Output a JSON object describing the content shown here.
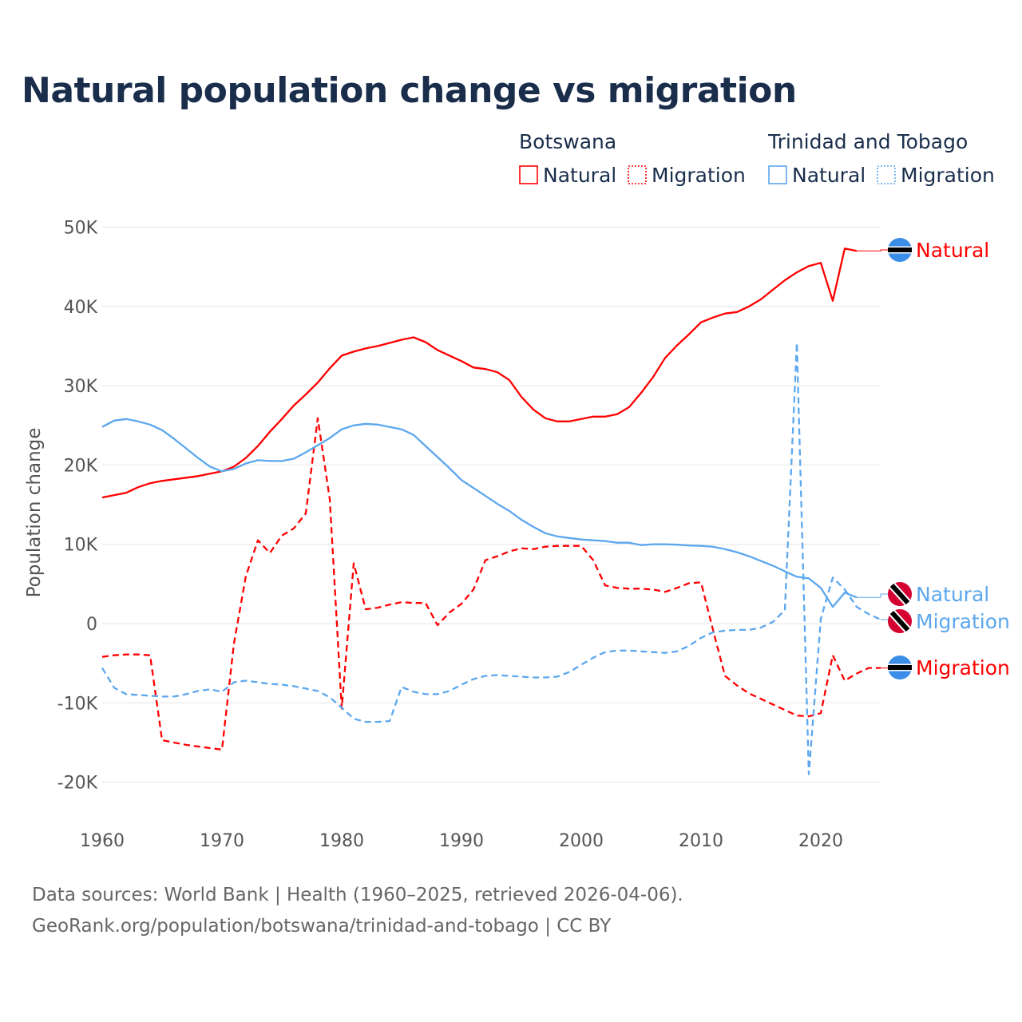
{
  "chart_data": {
    "type": "line",
    "title": "Natural population change vs migration",
    "xlabel": "",
    "ylabel": "Population change",
    "xlim": [
      1960,
      2025
    ],
    "ylim": [
      -20000,
      50000
    ],
    "x_ticks": [
      "1960",
      "1970",
      "1980",
      "1990",
      "2000",
      "2010",
      "2020"
    ],
    "y_ticks": [
      {
        "v": 50000,
        "label": "50K"
      },
      {
        "v": 40000,
        "label": "40K"
      },
      {
        "v": 30000,
        "label": "30K"
      },
      {
        "v": 20000,
        "label": "20K"
      },
      {
        "v": 10000,
        "label": "10K"
      },
      {
        "v": 0,
        "label": "0"
      },
      {
        "v": -10000,
        "label": "-10K"
      },
      {
        "v": -20000,
        "label": "-20K"
      }
    ],
    "grid": true,
    "legend": {
      "placement": "top-right",
      "groups": [
        {
          "country": "Botswana",
          "items": [
            "Natural",
            "Migration"
          ]
        },
        {
          "country": "Trinidad and Tobago",
          "items": [
            "Natural",
            "Migration"
          ]
        }
      ]
    },
    "colors": {
      "Botswana": "#ff0000",
      "Trinidad and Tobago": "#5ca7ee"
    },
    "series": [
      {
        "name": "Botswana Natural",
        "country": "Botswana",
        "kind": "Natural",
        "end_label": "Natural",
        "start": 1960,
        "values": [
          15900,
          16200,
          16500,
          17200,
          17700,
          18000,
          18200,
          18400,
          18600,
          18900,
          19200,
          19800,
          20900,
          22400,
          24200,
          25800,
          27500,
          28900,
          30400,
          32200,
          33800,
          34300,
          34700,
          35000,
          35400,
          35800,
          36100,
          35500,
          34500,
          33800,
          33100,
          32300,
          32100,
          31700,
          30700,
          28600,
          27000,
          25900,
          25500,
          25500,
          25800,
          26100,
          26100,
          26400,
          27300,
          29100,
          31100,
          33500,
          35100,
          36500,
          38000,
          38600,
          39100,
          39300,
          40000,
          40900,
          42100,
          43300,
          44300,
          45100,
          45500,
          40700,
          47300,
          47000
        ]
      },
      {
        "name": "Botswana Migration",
        "country": "Botswana",
        "kind": "Migration",
        "end_label": "Migration",
        "start": 1960,
        "values": [
          -4200,
          -4000,
          -3900,
          -3900,
          -4000,
          -14700,
          -15000,
          -15300,
          -15500,
          -15700,
          -15900,
          -2500,
          6000,
          10500,
          8900,
          11100,
          12000,
          13900,
          25900,
          15700,
          -10700,
          7600,
          1800,
          2000,
          2400,
          2700,
          2600,
          2600,
          -200,
          1400,
          2500,
          4300,
          8000,
          8500,
          9100,
          9500,
          9400,
          9700,
          9800,
          9800,
          9800,
          8000,
          4800,
          4500,
          4400,
          4400,
          4300,
          4000,
          4500,
          5100,
          5200,
          -800,
          -6600,
          -7800,
          -8800,
          -9500,
          -10200,
          -10900,
          -11600,
          -11700,
          -11300,
          -4000,
          -7200,
          -6300,
          -5600,
          -5600
        ]
      },
      {
        "name": "Trinidad and Tobago Natural",
        "country": "Trinidad and Tobago",
        "kind": "Natural",
        "end_label": "Natural",
        "start": 1960,
        "values": [
          24800,
          25600,
          25800,
          25500,
          25100,
          24400,
          23300,
          22100,
          20900,
          19800,
          19200,
          19500,
          20200,
          20600,
          20500,
          20500,
          20800,
          21600,
          22500,
          23400,
          24500,
          25000,
          25200,
          25100,
          24800,
          24500,
          23800,
          22400,
          21000,
          19600,
          18100,
          17100,
          16100,
          15100,
          14200,
          13100,
          12200,
          11400,
          11000,
          10800,
          10600,
          10500,
          10400,
          10200,
          10200,
          9900,
          10000,
          10000,
          9950,
          9850,
          9800,
          9700,
          9400,
          9000,
          8500,
          7900,
          7300,
          6600,
          5900,
          5700,
          4500,
          2100,
          3900,
          3300
        ]
      },
      {
        "name": "Trinidad and Tobago Migration",
        "country": "Trinidad and Tobago",
        "kind": "Migration",
        "end_label": "Migration",
        "start": 1960,
        "values": [
          -5600,
          -8100,
          -8900,
          -9000,
          -9100,
          -9200,
          -9200,
          -8900,
          -8500,
          -8300,
          -8600,
          -7400,
          -7200,
          -7400,
          -7600,
          -7700,
          -7900,
          -8200,
          -8500,
          -9300,
          -10600,
          -12000,
          -12400,
          -12400,
          -12300,
          -8000,
          -8600,
          -8900,
          -8900,
          -8500,
          -7700,
          -7000,
          -6600,
          -6500,
          -6600,
          -6700,
          -6800,
          -6800,
          -6700,
          -6100,
          -5200,
          -4300,
          -3600,
          -3400,
          -3400,
          -3500,
          -3600,
          -3700,
          -3500,
          -2800,
          -1800,
          -1100,
          -900,
          -800,
          -800,
          -500,
          200,
          1700,
          35400,
          -19000,
          600,
          5800,
          4300,
          2100,
          1200,
          500
        ]
      }
    ]
  },
  "footer": {
    "line1": "Data sources: World Bank | Health (1960–2025, retrieved 2026-04-06).",
    "line2": "GeoRank.org/population/botswana/trinidad-and-tobago | CC BY"
  }
}
